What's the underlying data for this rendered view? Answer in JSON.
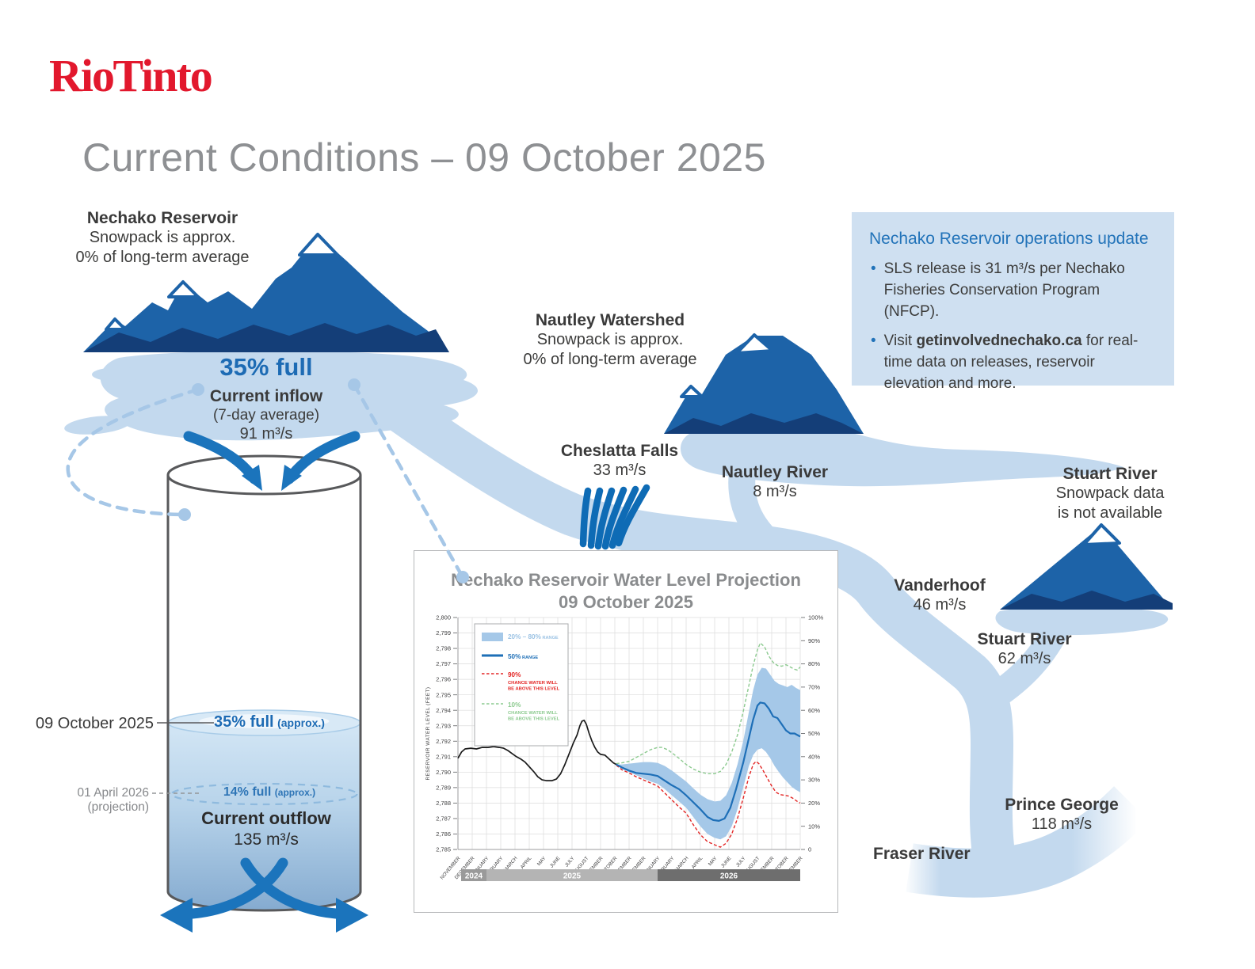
{
  "brand": {
    "logo_text": "Rio Tinto",
    "logo_color": "#e2182d"
  },
  "page": {
    "title": "Current Conditions – 09 October 2025"
  },
  "reservoir": {
    "name": "Nechako Reservoir",
    "snowpack_line1": "Snowpack is approx.",
    "snowpack_line2": "0% of long-term average",
    "percent_full": "35% full",
    "inflow_label": "Current inflow",
    "inflow_note": "(7-day average)",
    "inflow_value": "91 m³/s"
  },
  "cylinder": {
    "date_current": "09 October 2025",
    "current_level": "35% full",
    "current_level_note": "(approx.)",
    "date_projection": "01 April 2026 (projection)",
    "projection_level": "14% full",
    "projection_level_note": "(approx.)",
    "outflow_label": "Current outflow",
    "outflow_value": "135 m³/s"
  },
  "cheslatta": {
    "name": "Cheslatta Falls",
    "value": "33 m³/s"
  },
  "nautley_watershed": {
    "name": "Nautley Watershed",
    "snowpack_line1": "Snowpack is approx.",
    "snowpack_line2": "0% of long-term average"
  },
  "nautley_river": {
    "name": "Nautley River",
    "value": "8 m³/s"
  },
  "ops_box": {
    "title": "Nechako Reservoir operations update",
    "bullet1": "SLS release is 31 m³/s per Nechako Fisheries Conservation Program (NFCP).",
    "bullet2_prefix": "Visit ",
    "bullet2_bold": "getinvolvednechako.ca",
    "bullet2_suffix": " for real-time data on releases, reservoir elevation and more."
  },
  "stuart_watershed": {
    "name": "Stuart River",
    "line1": "Snowpack data",
    "line2": "is not available"
  },
  "vanderhoof": {
    "name": "Vanderhoof",
    "value": "46 m³/s"
  },
  "stuart_river": {
    "name": "Stuart River",
    "value": "62 m³/s"
  },
  "prince_george": {
    "name": "Prince George",
    "value": "118 m³/s"
  },
  "fraser_river": {
    "name": "Fraser River"
  },
  "chart_data": {
    "type": "line",
    "title": "Nechako Reservoir Water Level Projection",
    "subtitle": "09 October 2025",
    "ylabel": "RESERVOIR WATER LEVEL (FEET)",
    "ylim": [
      2785,
      2800
    ],
    "y_tick_step": 1,
    "y2lim": [
      0,
      100
    ],
    "y2_tick_step": 10,
    "grid": true,
    "legend_position": "top-left",
    "x_months": [
      "NOVEMBER",
      "DECEMBER",
      "JANUARY",
      "FEBRUARY",
      "MARCH",
      "APRIL",
      "MAY",
      "JUNE",
      "JULY",
      "AUGUST",
      "SEPTEMBER",
      "OCTOBER",
      "NOVEMBER",
      "DECEMBER",
      "JANUARY",
      "FEBRUARY",
      "MARCH",
      "APRIL",
      "MAY",
      "JUNE",
      "JULY",
      "AUGUST",
      "SEPTEMBER",
      "OCTOBER",
      "NOVEMBER"
    ],
    "year_bands": [
      {
        "label": "2024",
        "from": 0,
        "to": 2,
        "color": "#9a9a9a"
      },
      {
        "label": "2025",
        "from": 2,
        "to": 14,
        "color": "#b4b4b4"
      },
      {
        "label": "2026",
        "from": 14,
        "to": 24,
        "color": "#6e6e6e"
      }
    ],
    "legend": [
      {
        "swatch": "band",
        "color": "#a5c8e8",
        "label_color": "#9cc3e4",
        "label": "20% – 80%",
        "suffix": "RANGE"
      },
      {
        "swatch": "line",
        "color": "#1e6fb7",
        "label_color": "#1e6fb7",
        "label": "50%",
        "suffix": "RANGE"
      },
      {
        "swatch": "dash",
        "color": "#e32726",
        "label_color": "#e32726",
        "label": "90%",
        "lines": [
          "CHANCE WATER WILL",
          "BE ABOVE THIS LEVEL"
        ]
      },
      {
        "swatch": "dash",
        "color": "#8cca8f",
        "label_color": "#8cca8f",
        "label": "10%",
        "lines": [
          "CHANCE WATER WILL",
          "BE ABOVE THIS LEVEL"
        ]
      }
    ],
    "series": {
      "history": {
        "name": "Observed water level",
        "color": "#1a1a1a",
        "style": "solid",
        "points": [
          [
            0,
            2790.9
          ],
          [
            0.25,
            2791.3
          ],
          [
            0.5,
            2791.5
          ],
          [
            0.9,
            2791.55
          ],
          [
            1.3,
            2791.5
          ],
          [
            1.7,
            2791.6
          ],
          [
            2.1,
            2791.6
          ],
          [
            2.5,
            2791.65
          ],
          [
            2.9,
            2791.6
          ],
          [
            3.2,
            2791.55
          ],
          [
            3.5,
            2791.4
          ],
          [
            3.8,
            2791.2
          ],
          [
            4.1,
            2791.0
          ],
          [
            4.4,
            2790.85
          ],
          [
            4.7,
            2790.65
          ],
          [
            5,
            2790.35
          ],
          [
            5.3,
            2790.05
          ],
          [
            5.6,
            2789.7
          ],
          [
            5.9,
            2789.5
          ],
          [
            6.2,
            2789.45
          ],
          [
            6.6,
            2789.45
          ],
          [
            6.9,
            2789.55
          ],
          [
            7.2,
            2789.9
          ],
          [
            7.5,
            2790.5
          ],
          [
            7.8,
            2791.2
          ],
          [
            8.1,
            2791.9
          ],
          [
            8.35,
            2792.4
          ],
          [
            8.55,
            2793.0
          ],
          [
            8.7,
            2793.3
          ],
          [
            8.85,
            2793.35
          ],
          [
            9,
            2793.1
          ],
          [
            9.2,
            2792.5
          ],
          [
            9.4,
            2792.0
          ],
          [
            9.6,
            2791.6
          ],
          [
            9.8,
            2791.3
          ],
          [
            10,
            2791.15
          ],
          [
            10.3,
            2791.1
          ],
          [
            10.6,
            2790.85
          ],
          [
            10.9,
            2790.6
          ],
          [
            11.1,
            2790.5
          ]
        ]
      },
      "median": {
        "name": "50% range (median projection)",
        "color": "#1e6fb7",
        "style": "solid",
        "points": [
          [
            11.1,
            2790.5
          ],
          [
            11.5,
            2790.3
          ],
          [
            12,
            2790.1
          ],
          [
            12.5,
            2789.95
          ],
          [
            13,
            2789.9
          ],
          [
            13.5,
            2789.85
          ],
          [
            14,
            2789.75
          ],
          [
            14.5,
            2789.45
          ],
          [
            15,
            2789.15
          ],
          [
            15.5,
            2788.9
          ],
          [
            16,
            2788.5
          ],
          [
            16.5,
            2788.05
          ],
          [
            17,
            2787.6
          ],
          [
            17.5,
            2787.1
          ],
          [
            17.9,
            2786.9
          ],
          [
            18.3,
            2786.85
          ],
          [
            18.7,
            2787.0
          ],
          [
            19.1,
            2787.7
          ],
          [
            19.5,
            2788.9
          ],
          [
            20,
            2790.6
          ],
          [
            20.4,
            2792.2
          ],
          [
            20.7,
            2793.4
          ],
          [
            21,
            2794.3
          ],
          [
            21.2,
            2794.5
          ],
          [
            21.5,
            2794.45
          ],
          [
            21.8,
            2794.1
          ],
          [
            22.1,
            2793.6
          ],
          [
            22.4,
            2793.5
          ],
          [
            22.7,
            2793.1
          ],
          [
            23,
            2792.7
          ],
          [
            23.3,
            2792.5
          ],
          [
            23.6,
            2792.5
          ],
          [
            24,
            2792.3
          ]
        ]
      },
      "band_upper": {
        "name": "80th percentile",
        "color": "#a5c8e8",
        "points": [
          [
            11.1,
            2790.5
          ],
          [
            11.5,
            2790.5
          ],
          [
            12,
            2790.55
          ],
          [
            12.5,
            2790.6
          ],
          [
            13,
            2790.65
          ],
          [
            13.5,
            2790.65
          ],
          [
            14,
            2790.6
          ],
          [
            14.5,
            2790.4
          ],
          [
            15,
            2790.1
          ],
          [
            15.5,
            2789.75
          ],
          [
            16,
            2789.4
          ],
          [
            16.5,
            2788.95
          ],
          [
            17,
            2788.55
          ],
          [
            17.5,
            2788.25
          ],
          [
            18,
            2788.1
          ],
          [
            18.4,
            2788.15
          ],
          [
            18.8,
            2788.5
          ],
          [
            19.2,
            2789.3
          ],
          [
            19.6,
            2790.5
          ],
          [
            20,
            2792.0
          ],
          [
            20.4,
            2793.9
          ],
          [
            20.7,
            2795.3
          ],
          [
            21,
            2796.3
          ],
          [
            21.3,
            2796.75
          ],
          [
            21.6,
            2796.7
          ],
          [
            21.9,
            2796.3
          ],
          [
            22.2,
            2795.9
          ],
          [
            22.5,
            2795.7
          ],
          [
            22.8,
            2795.6
          ],
          [
            23.1,
            2795.5
          ],
          [
            23.4,
            2795.65
          ],
          [
            23.7,
            2795.45
          ],
          [
            24,
            2795.3
          ]
        ]
      },
      "band_lower": {
        "name": "20th percentile",
        "color": "#a5c8e8",
        "points": [
          [
            11.1,
            2790.5
          ],
          [
            11.5,
            2790.2
          ],
          [
            12,
            2790.0
          ],
          [
            12.5,
            2789.8
          ],
          [
            13,
            2789.6
          ],
          [
            13.5,
            2789.4
          ],
          [
            14,
            2789.25
          ],
          [
            14.5,
            2788.9
          ],
          [
            15,
            2788.5
          ],
          [
            15.5,
            2788.1
          ],
          [
            16,
            2787.7
          ],
          [
            16.5,
            2787.1
          ],
          [
            17,
            2786.5
          ],
          [
            17.5,
            2786.0
          ],
          [
            18,
            2785.75
          ],
          [
            18.4,
            2785.65
          ],
          [
            18.8,
            2785.85
          ],
          [
            19.2,
            2786.5
          ],
          [
            19.6,
            2787.6
          ],
          [
            20,
            2789.0
          ],
          [
            20.4,
            2790.4
          ],
          [
            20.7,
            2791.1
          ],
          [
            21,
            2791.45
          ],
          [
            21.3,
            2791.55
          ],
          [
            21.6,
            2791.3
          ],
          [
            21.9,
            2790.9
          ],
          [
            22.2,
            2790.4
          ],
          [
            22.5,
            2790.0
          ],
          [
            22.8,
            2789.65
          ],
          [
            23.1,
            2789.35
          ],
          [
            23.4,
            2789.05
          ],
          [
            23.7,
            2788.85
          ],
          [
            24,
            2788.7
          ]
        ]
      },
      "p90": {
        "name": "90% chance water will be above this level",
        "color": "#e32726",
        "style": "dashed",
        "points": [
          [
            11.1,
            2790.45
          ],
          [
            11.5,
            2790.15
          ],
          [
            12,
            2789.95
          ],
          [
            12.5,
            2789.7
          ],
          [
            13,
            2789.5
          ],
          [
            13.5,
            2789.3
          ],
          [
            14,
            2789.1
          ],
          [
            14.5,
            2788.65
          ],
          [
            15,
            2788.2
          ],
          [
            15.5,
            2787.75
          ],
          [
            16,
            2787.35
          ],
          [
            16.5,
            2786.6
          ],
          [
            17,
            2785.95
          ],
          [
            17.5,
            2785.5
          ],
          [
            18,
            2785.3
          ],
          [
            18.4,
            2785.15
          ],
          [
            18.8,
            2785.4
          ],
          [
            19.2,
            2786.0
          ],
          [
            19.6,
            2787.0
          ],
          [
            20,
            2788.3
          ],
          [
            20.4,
            2789.7
          ],
          [
            20.7,
            2790.5
          ],
          [
            20.9,
            2790.7
          ],
          [
            21.1,
            2790.55
          ],
          [
            21.4,
            2790.1
          ],
          [
            21.7,
            2789.6
          ],
          [
            22,
            2789.1
          ],
          [
            22.3,
            2788.7
          ],
          [
            22.6,
            2788.55
          ],
          [
            22.9,
            2788.5
          ],
          [
            23.2,
            2788.45
          ],
          [
            23.5,
            2788.3
          ],
          [
            23.8,
            2788.1
          ],
          [
            24,
            2788.0
          ]
        ]
      },
      "p10": {
        "name": "10% chance water will be above this level",
        "color": "#8cca8f",
        "style": "dashed",
        "points": [
          [
            11.1,
            2790.55
          ],
          [
            11.5,
            2790.6
          ],
          [
            12,
            2790.7
          ],
          [
            12.5,
            2790.95
          ],
          [
            13,
            2791.2
          ],
          [
            13.5,
            2791.45
          ],
          [
            14,
            2791.6
          ],
          [
            14.3,
            2791.6
          ],
          [
            14.7,
            2791.45
          ],
          [
            15,
            2791.25
          ],
          [
            15.5,
            2790.9
          ],
          [
            16,
            2790.5
          ],
          [
            16.5,
            2790.2
          ],
          [
            17,
            2790.0
          ],
          [
            17.5,
            2789.9
          ],
          [
            18,
            2789.9
          ],
          [
            18.4,
            2790.05
          ],
          [
            18.8,
            2790.5
          ],
          [
            19.2,
            2791.3
          ],
          [
            19.6,
            2792.4
          ],
          [
            20,
            2793.9
          ],
          [
            20.4,
            2795.6
          ],
          [
            20.7,
            2796.9
          ],
          [
            21,
            2797.9
          ],
          [
            21.2,
            2798.35
          ],
          [
            21.5,
            2798.1
          ],
          [
            21.8,
            2797.5
          ],
          [
            22.1,
            2797.1
          ],
          [
            22.4,
            2796.9
          ],
          [
            22.7,
            2796.85
          ],
          [
            23,
            2796.95
          ],
          [
            23.3,
            2796.8
          ],
          [
            23.6,
            2796.65
          ],
          [
            23.8,
            2796.6
          ],
          [
            24,
            2796.8
          ]
        ]
      }
    }
  }
}
